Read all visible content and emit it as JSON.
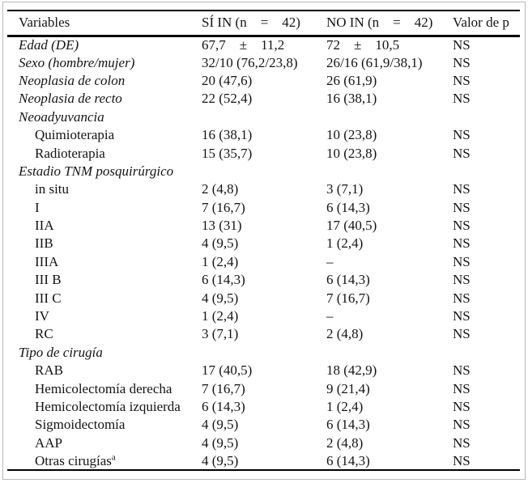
{
  "header": {
    "col_variables": "Variables",
    "col_si": "SÍ IN (n    =    42)",
    "col_no": "NO IN (n    =    42)",
    "col_p": "Valor de p"
  },
  "rows": [
    {
      "label": "Edad (DE)",
      "style": "italic",
      "si": "67,7    ±    11,2",
      "no": "72    ±    10,5",
      "p": "NS"
    },
    {
      "label": "Sexo (hombre/mujer)",
      "style": "italic",
      "si": "32/10 (76,2/23,8)",
      "no": "26/16 (61,9/38,1)",
      "p": "NS"
    },
    {
      "label": "Neoplasia de colon",
      "style": "italic",
      "si": "20 (47,6)",
      "no": "26 (61,9)",
      "p": "NS"
    },
    {
      "label": "Neoplasia de recto",
      "style": "italic",
      "si": "22 (52,4)",
      "no": "16 (38,1)",
      "p": "NS"
    },
    {
      "label": "Neoadyuvancia",
      "style": "italic",
      "si": "",
      "no": "",
      "p": ""
    },
    {
      "label": "Quimioterapia",
      "style": "indent",
      "si": "16 (38,1)",
      "no": "10 (23,8)",
      "p": "NS"
    },
    {
      "label": "Radioterapia",
      "style": "indent",
      "si": "15 (35,7)",
      "no": "10 (23,8)",
      "p": "NS"
    },
    {
      "label": "Estadio TNM posquirúrgico",
      "style": "italic",
      "si": "",
      "no": "",
      "p": ""
    },
    {
      "label": "in situ",
      "style": "indent",
      "si": "2 (4,8)",
      "no": "3 (7,1)",
      "p": "NS"
    },
    {
      "label": "I",
      "style": "indent",
      "si": "7 (16,7)",
      "no": "6 (14,3)",
      "p": "NS"
    },
    {
      "label": "IIA",
      "style": "indent",
      "si": "13 (31)",
      "no": "17 (40,5)",
      "p": "NS"
    },
    {
      "label": "IIB",
      "style": "indent",
      "si": "4 (9,5)",
      "no": "1 (2,4)",
      "p": "NS"
    },
    {
      "label": "IIIA",
      "style": "indent",
      "si": "1 (2,4)",
      "no": "–",
      "p": "NS"
    },
    {
      "label": "III B",
      "style": "indent",
      "si": "6 (14,3)",
      "no": "6 (14,3)",
      "p": "NS"
    },
    {
      "label": "III C",
      "style": "indent",
      "si": "4 (9,5)",
      "no": "7 (16,7)",
      "p": "NS"
    },
    {
      "label": "IV",
      "style": "indent",
      "si": "1 (2,4)",
      "no": "–",
      "p": "NS"
    },
    {
      "label": "RC",
      "style": "indent",
      "si": "3 (7,1)",
      "no": "2 (4,8)",
      "p": "NS"
    },
    {
      "label": "Tipo de cirugía",
      "style": "italic",
      "si": "",
      "no": "",
      "p": ""
    },
    {
      "label": "RAB",
      "style": "indent",
      "si": "17 (40,5)",
      "no": "18 (42,9)",
      "p": "NS"
    },
    {
      "label": "Hemicolectomía derecha",
      "style": "indent",
      "si": "7 (16,7)",
      "no": "9 (21,4)",
      "p": "NS"
    },
    {
      "label": "Hemicolectomía izquierda",
      "style": "indent",
      "si": "6 (14,3)",
      "no": "1 (2,4)",
      "p": "NS"
    },
    {
      "label": "Sigmoidectomía",
      "style": "indent",
      "si": "4 (9,5)",
      "no": "6 (14,3)",
      "p": "NS"
    },
    {
      "label": "AAP",
      "style": "indent",
      "si": "4 (9,5)",
      "no": "2 (4,8)",
      "p": "NS"
    },
    {
      "label": "Otras cirugías",
      "sup": "a",
      "style": "indent",
      "si": "4 (9,5)",
      "no": "6 (14,3)",
      "p": "NS"
    }
  ]
}
